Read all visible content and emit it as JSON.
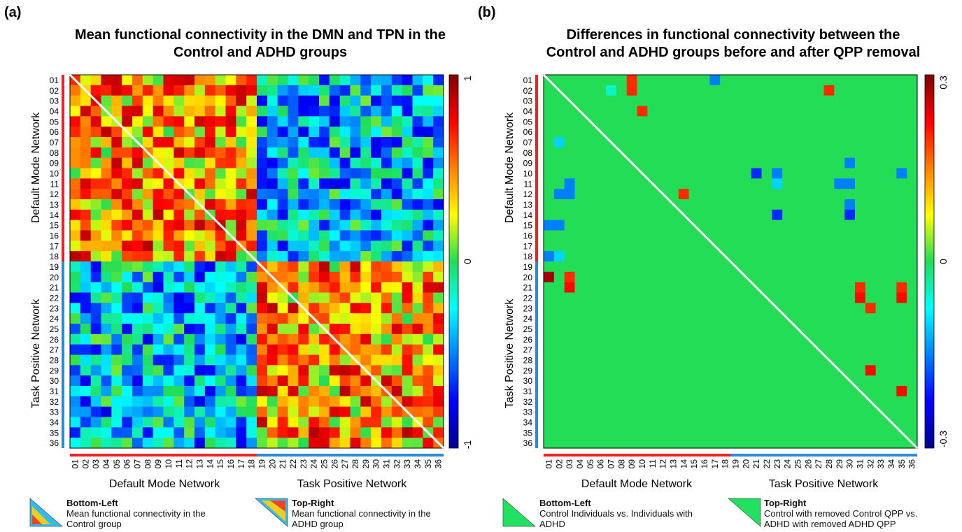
{
  "panels": [
    {
      "id": "a",
      "panel_label": "(a)",
      "title_line1": "Mean functional connectivity in the DMN and TPN in the",
      "title_line2": "Control and ADHD groups",
      "y_axis_label_top": "Default Mode Network",
      "y_axis_label_bottom": "Task Positive Network",
      "x_axis_label_left": "Default Mode Network",
      "x_axis_label_right": "Task Positive Network",
      "colorbar_max": "1",
      "colorbar_mid": "0",
      "colorbar_min": "-1",
      "legend": [
        {
          "title": "Bottom-Left",
          "desc": "Mean functional connectivity in the Control group"
        },
        {
          "title": "Top-Right",
          "desc": "Mean functional connectivity in the ADHD group"
        }
      ]
    },
    {
      "id": "b",
      "panel_label": "(b)",
      "title_line1": "Differences in functional connectivity between the",
      "title_line2": "Control and ADHD groups before and after QPP removal",
      "y_axis_label_top": "Default Mode Network",
      "y_axis_label_bottom": "Task Positive Network",
      "x_axis_label_left": "Default Mode Network",
      "x_axis_label_right": "Task Positive Network",
      "colorbar_max": "0.3",
      "colorbar_mid": "0",
      "colorbar_min": "-0.3",
      "legend": [
        {
          "title": "Bottom-Left",
          "desc": "Control Individuals vs. Individuals with ADHD"
        },
        {
          "title": "Top-Right",
          "desc": "Control with removed Control QPP vs. ADHD with removed ADHD QPP"
        }
      ]
    }
  ],
  "chart_data": [
    {
      "type": "heatmap",
      "panel": "a",
      "rows": [
        "01",
        "02",
        "03",
        "04",
        "05",
        "06",
        "07",
        "08",
        "09",
        "10",
        "11",
        "12",
        "13",
        "14",
        "15",
        "16",
        "17",
        "18",
        "19",
        "20",
        "21",
        "22",
        "23",
        "24",
        "25",
        "26",
        "27",
        "28",
        "29",
        "30",
        "31",
        "32",
        "33",
        "34",
        "35",
        "36"
      ],
      "cols": [
        "01",
        "02",
        "03",
        "04",
        "05",
        "06",
        "07",
        "08",
        "09",
        "10",
        "11",
        "12",
        "13",
        "14",
        "15",
        "16",
        "17",
        "18",
        "19",
        "20",
        "21",
        "22",
        "23",
        "24",
        "25",
        "26",
        "27",
        "28",
        "29",
        "30",
        "31",
        "32",
        "33",
        "34",
        "35",
        "36"
      ],
      "groups": [
        {
          "name": "Default Mode Network",
          "from": 1,
          "to": 18,
          "color": "#ee2222"
        },
        {
          "name": "Task Positive Network",
          "from": 19,
          "to": 36,
          "color": "#2a8ad4"
        }
      ],
      "clim": [
        -1,
        1
      ],
      "block_means": {
        "dmn_dmn": 0.45,
        "tpn_tpn": 0.45,
        "dmn_tpn": -0.35
      },
      "diagonal": "white line",
      "lower_triangle": "Control group mean FC",
      "upper_triangle": "ADHD group mean FC",
      "note": "cell values approximated by block means with visible variation"
    },
    {
      "type": "heatmap",
      "panel": "b",
      "rows": [
        "01",
        "02",
        "03",
        "04",
        "05",
        "06",
        "07",
        "08",
        "09",
        "10",
        "11",
        "12",
        "13",
        "14",
        "15",
        "16",
        "17",
        "18",
        "19",
        "20",
        "21",
        "22",
        "23",
        "24",
        "25",
        "26",
        "27",
        "28",
        "29",
        "30",
        "31",
        "32",
        "33",
        "34",
        "35",
        "36"
      ],
      "cols": [
        "01",
        "02",
        "03",
        "04",
        "05",
        "06",
        "07",
        "08",
        "09",
        "10",
        "11",
        "12",
        "13",
        "14",
        "15",
        "16",
        "17",
        "18",
        "19",
        "20",
        "21",
        "22",
        "23",
        "24",
        "25",
        "26",
        "27",
        "28",
        "29",
        "30",
        "31",
        "32",
        "33",
        "34",
        "35",
        "36"
      ],
      "clim": [
        -0.3,
        0.3
      ],
      "background_value": 0,
      "cells": [
        {
          "row": 1,
          "col": 9,
          "value": 0.2
        },
        {
          "row": 1,
          "col": 17,
          "value": -0.15
        },
        {
          "row": 2,
          "col": 7,
          "value": -0.05
        },
        {
          "row": 2,
          "col": 9,
          "value": 0.2
        },
        {
          "row": 2,
          "col": 28,
          "value": 0.2
        },
        {
          "row": 4,
          "col": 10,
          "value": 0.2
        },
        {
          "row": 7,
          "col": 2,
          "value": -0.1
        },
        {
          "row": 10,
          "col": 21,
          "value": -0.2
        },
        {
          "row": 10,
          "col": 23,
          "value": -0.15
        },
        {
          "row": 10,
          "col": 35,
          "value": -0.15
        },
        {
          "row": 9,
          "col": 30,
          "value": -0.15
        },
        {
          "row": 11,
          "col": 3,
          "value": -0.15
        },
        {
          "row": 11,
          "col": 23,
          "value": -0.1
        },
        {
          "row": 11,
          "col": 29,
          "value": -0.15
        },
        {
          "row": 11,
          "col": 30,
          "value": -0.15
        },
        {
          "row": 12,
          "col": 2,
          "value": -0.15
        },
        {
          "row": 12,
          "col": 3,
          "value": -0.15
        },
        {
          "row": 12,
          "col": 14,
          "value": 0.2
        },
        {
          "row": 13,
          "col": 30,
          "value": -0.15
        },
        {
          "row": 14,
          "col": 23,
          "value": -0.2
        },
        {
          "row": 14,
          "col": 30,
          "value": -0.2
        },
        {
          "row": 15,
          "col": 1,
          "value": -0.15
        },
        {
          "row": 15,
          "col": 2,
          "value": -0.15
        },
        {
          "row": 18,
          "col": 1,
          "value": -0.15
        },
        {
          "row": 18,
          "col": 2,
          "value": -0.1
        },
        {
          "row": 20,
          "col": 1,
          "value": 0.28
        },
        {
          "row": 20,
          "col": 3,
          "value": 0.2
        },
        {
          "row": 21,
          "col": 3,
          "value": 0.22
        },
        {
          "row": 21,
          "col": 31,
          "value": 0.2
        },
        {
          "row": 21,
          "col": 35,
          "value": 0.2
        },
        {
          "row": 22,
          "col": 31,
          "value": 0.22
        },
        {
          "row": 22,
          "col": 35,
          "value": 0.22
        },
        {
          "row": 23,
          "col": 32,
          "value": 0.2
        },
        {
          "row": 29,
          "col": 32,
          "value": 0.22
        },
        {
          "row": 31,
          "col": 35,
          "value": 0.22
        }
      ],
      "diagonal": "white line",
      "lower_triangle": "Control Individuals vs. Individuals with ADHD",
      "upper_triangle": "Control with removed Control QPP vs. ADHD with removed ADHD QPP"
    }
  ]
}
